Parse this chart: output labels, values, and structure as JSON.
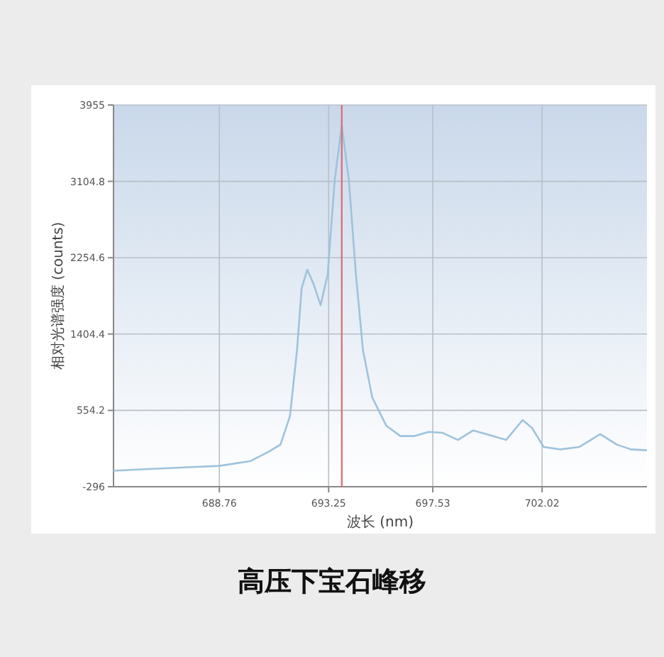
{
  "chart_data": {
    "type": "line",
    "title": "高压下宝石峰移",
    "xlabel": "波长 (nm)",
    "ylabel": "相对光谱强度 (counts)",
    "x": [
      684.41,
      685.57,
      688.76,
      690.02,
      690.79,
      691.27,
      691.66,
      691.95,
      692.14,
      692.37,
      692.63,
      692.92,
      693.21,
      693.5,
      693.79,
      694.08,
      694.37,
      694.66,
      695.04,
      695.62,
      696.2,
      696.78,
      697.36,
      697.94,
      698.56,
      699.19,
      699.87,
      700.54,
      701.22,
      701.61,
      702.09,
      702.77,
      703.54,
      704.41,
      705.09,
      705.67,
      706.33
    ],
    "series": [
      {
        "color": "#9ec3dc",
        "values": [
          -118,
          -102,
          -64,
          -12,
          94,
          173,
          489,
          1226,
          1911,
          2121,
          1963,
          1726,
          2069,
          3122,
          3728,
          3122,
          2069,
          1226,
          699,
          383,
          268,
          268,
          315,
          304,
          225,
          331,
          278,
          225,
          447,
          357,
          146,
          120,
          146,
          289,
          173,
          120,
          110
        ]
      }
    ],
    "xlim": [
      684.41,
      706.33
    ],
    "xticks": [
      688.76,
      693.25,
      697.53,
      702.02
    ],
    "ylim": [
      -296,
      3955
    ],
    "yticks": [
      -296,
      554.2,
      1404.4,
      2254.6,
      3104.8,
      3955
    ],
    "ref_lines": [
      {
        "axis": "x",
        "value": 693.79,
        "color": "#d9737f"
      }
    ],
    "grid": true
  }
}
